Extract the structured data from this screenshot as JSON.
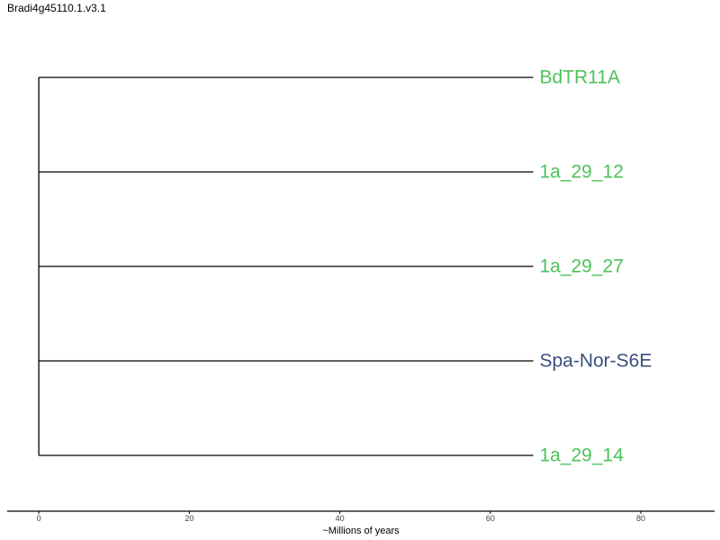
{
  "title": "Bradi4g45110.1.v3.1",
  "tree": {
    "tips": [
      {
        "label": "BdTR11A",
        "color": "#4dc25a"
      },
      {
        "label": "1a_29_12",
        "color": "#4dc25a"
      },
      {
        "label": "1a_29_27",
        "color": "#4dc25a"
      },
      {
        "label": "Spa-Nor-S6E",
        "color": "#3b4f7c"
      },
      {
        "label": "1a_29_14",
        "color": "#4dc25a"
      }
    ],
    "root_age": 0,
    "tip_age": 65.7
  },
  "axis": {
    "xlabel": "~Millions of years",
    "xlim": [
      -4.2,
      89.8
    ],
    "ticks": [
      0,
      20,
      40,
      60,
      80
    ]
  },
  "colors": {
    "branch": "#000000",
    "axis": "#000000",
    "tick_label": "#444444"
  }
}
